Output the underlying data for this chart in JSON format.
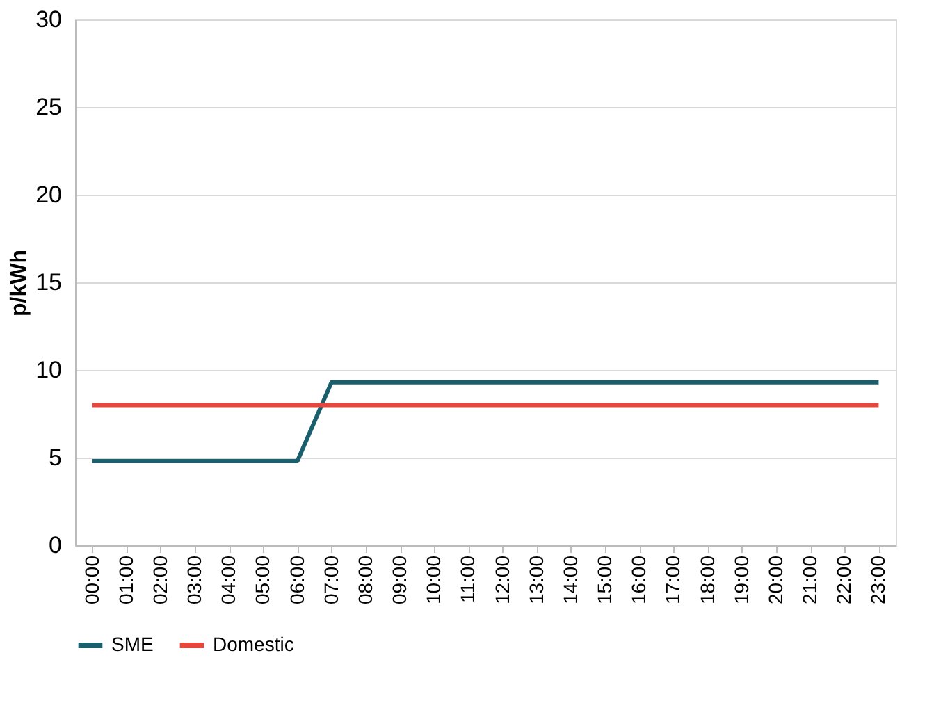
{
  "chart_data": {
    "type": "line",
    "ylabel": "p/kWh",
    "categories": [
      "00:00",
      "01:00",
      "02:00",
      "03:00",
      "04:00",
      "05:00",
      "06:00",
      "07:00",
      "08:00",
      "09:00",
      "10:00",
      "11:00",
      "12:00",
      "13:00",
      "14:00",
      "15:00",
      "16:00",
      "17:00",
      "18:00",
      "19:00",
      "20:00",
      "21:00",
      "22:00",
      "23:00"
    ],
    "series": [
      {
        "name": "SME",
        "color": "#1a5f6e",
        "values": [
          4.8,
          4.8,
          4.8,
          4.8,
          4.8,
          4.8,
          4.8,
          9.3,
          9.3,
          9.3,
          9.3,
          9.3,
          9.3,
          9.3,
          9.3,
          9.3,
          9.3,
          9.3,
          9.3,
          9.3,
          9.3,
          9.3,
          9.3,
          9.3
        ]
      },
      {
        "name": "Domestic",
        "color": "#e8453c",
        "values": [
          8,
          8,
          8,
          8,
          8,
          8,
          8,
          8,
          8,
          8,
          8,
          8,
          8,
          8,
          8,
          8,
          8,
          8,
          8,
          8,
          8,
          8,
          8,
          8
        ]
      }
    ],
    "ylim": [
      0,
      30
    ],
    "yticks": [
      0,
      5,
      10,
      15,
      20,
      25,
      30
    ],
    "grid": "y",
    "legend": "bottom",
    "marker": "none",
    "line_style": "solid"
  }
}
